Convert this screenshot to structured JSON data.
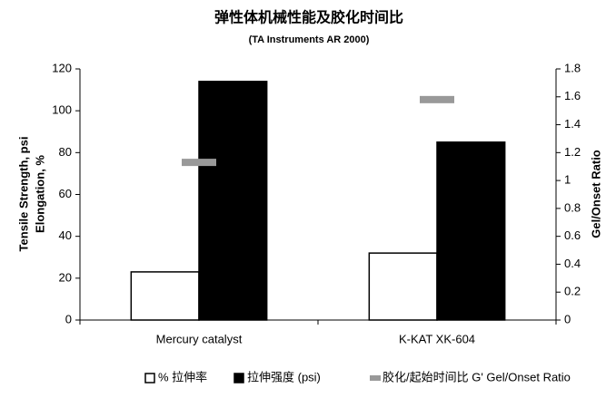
{
  "chart_data": {
    "type": "bar",
    "title": "弹性体机械性能及胶化时间比",
    "subtitle": "(TA Instruments AR 2000)",
    "ylabel": [
      "Tensile Strength, psi",
      "Elongation, %"
    ],
    "y2label": "Gel/Onset Ratio",
    "categories": [
      "Mercury catalyst",
      "K-KAT XK-604"
    ],
    "series": [
      {
        "name": "% 拉伸率",
        "color": "#ffffff",
        "values": [
          23,
          32
        ]
      },
      {
        "name": "拉伸强度 (psi)",
        "color": "#000000",
        "values": [
          114,
          85
        ]
      },
      {
        "name": "胶化/起始时间比 G' Gel/Onset Ratio",
        "color": "#999999",
        "values": [
          1.13,
          1.58
        ],
        "axis": "y2"
      }
    ],
    "ylim": [
      0,
      120
    ],
    "yticks": [
      0,
      20,
      40,
      60,
      80,
      100,
      120
    ],
    "y2lim": [
      0,
      1.8
    ],
    "y2ticks": [
      0,
      0.2,
      0.4,
      0.6,
      0.8,
      1,
      1.2,
      1.4,
      1.6,
      1.8
    ],
    "grid": false
  }
}
